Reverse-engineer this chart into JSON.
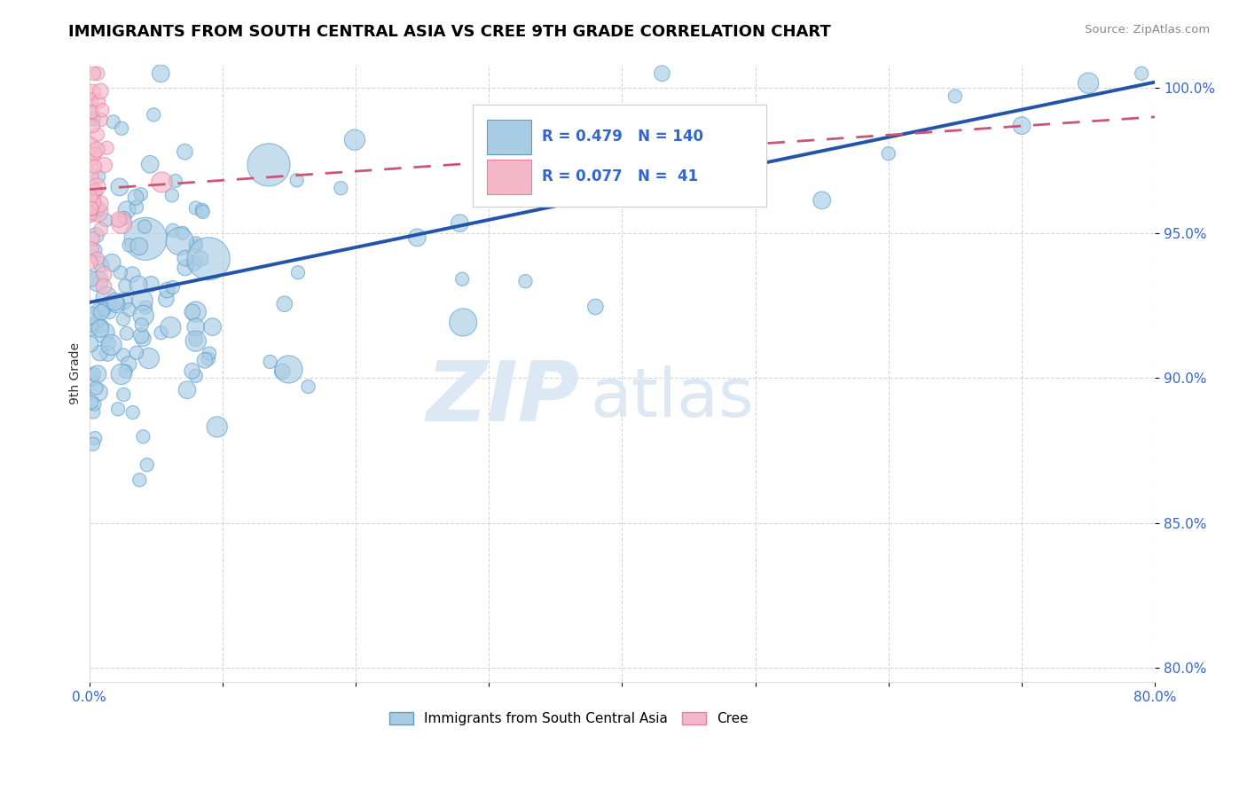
{
  "title": "IMMIGRANTS FROM SOUTH CENTRAL ASIA VS CREE 9TH GRADE CORRELATION CHART",
  "source_text": "Source: ZipAtlas.com",
  "ylabel": "9th Grade",
  "xlim": [
    0.0,
    0.8
  ],
  "ylim": [
    0.795,
    1.008
  ],
  "xticks": [
    0.0,
    0.1,
    0.2,
    0.3,
    0.4,
    0.5,
    0.6,
    0.7,
    0.8
  ],
  "xticklabels": [
    "0.0%",
    "",
    "",
    "",
    "",
    "",
    "",
    "",
    "80.0%"
  ],
  "yticks": [
    0.8,
    0.85,
    0.9,
    0.95,
    1.0
  ],
  "yticklabels": [
    "80.0%",
    "85.0%",
    "90.0%",
    "95.0%",
    "100.0%"
  ],
  "blue_color": "#a8cce4",
  "blue_edge_color": "#5b9dc9",
  "pink_color": "#f4b8c8",
  "pink_edge_color": "#e87fa0",
  "trend_blue_color": "#2255aa",
  "trend_pink_color": "#cc5577",
  "grid_color": "#cccccc",
  "text_color": "#3366cc",
  "legend_R_blue": "0.479",
  "legend_N_blue": "140",
  "legend_R_pink": "0.077",
  "legend_N_pink": " 41",
  "watermark_text": "ZIP",
  "watermark_text2": "atlas",
  "watermark_color": "#dde8f5",
  "legend_label_blue": "Immigrants from South Central Asia",
  "legend_label_pink": "Cree",
  "trend_blue_x0": 0.0,
  "trend_blue_y0": 0.926,
  "trend_blue_x1": 0.8,
  "trend_blue_y1": 1.002,
  "trend_pink_x0": 0.0,
  "trend_pink_y0": 0.965,
  "trend_pink_x1": 0.8,
  "trend_pink_y1": 0.99
}
